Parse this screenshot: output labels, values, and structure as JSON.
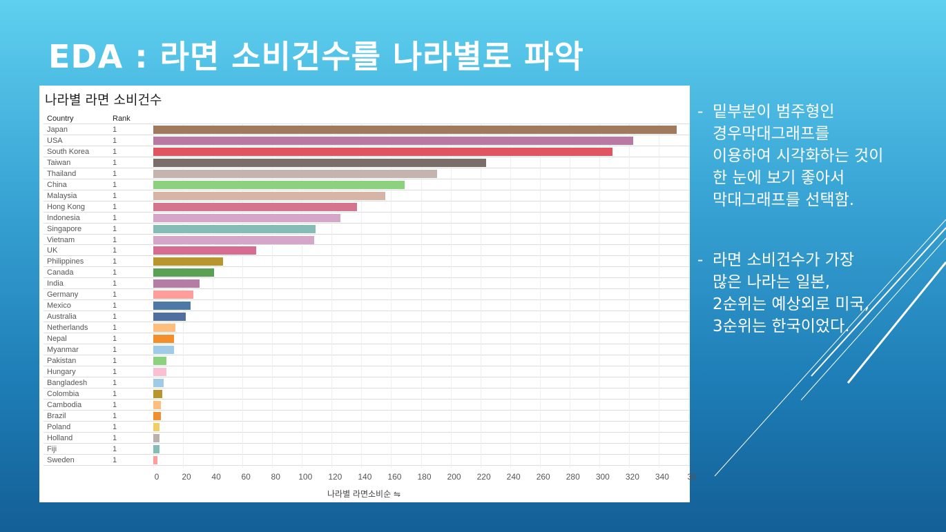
{
  "slide": {
    "title": "EDA : 라면 소비건수를 나라별로 파악"
  },
  "chart": {
    "title": "나라별 라면 소비건수",
    "headers": {
      "country": "Country",
      "rank": "Rank"
    },
    "axis_title": "나라별 라면소비순 ⇋",
    "tick_labels": [
      "0",
      "20",
      "40",
      "60",
      "80",
      "100",
      "120",
      "140",
      "160",
      "180",
      "200",
      "220",
      "240",
      "260",
      "280",
      "300",
      "320",
      "340",
      "36"
    ]
  },
  "chart_data": {
    "type": "bar",
    "orientation": "horizontal",
    "title": "나라별 라면 소비건수",
    "xlabel": "나라별 라면소비순",
    "xlim": [
      0,
      360
    ],
    "categories": [
      "Japan",
      "USA",
      "South Korea",
      "Taiwan",
      "Thailand",
      "China",
      "Malaysia",
      "Hong Kong",
      "Indonesia",
      "Singapore",
      "Vietnam",
      "UK",
      "Philippines",
      "Canada",
      "India",
      "Germany",
      "Mexico",
      "Australia",
      "Netherlands",
      "Nepal",
      "Myanmar",
      "Pakistan",
      "Hungary",
      "Bangladesh",
      "Colombia",
      "Cambodia",
      "Brazil",
      "Poland",
      "Holland",
      "Fiji",
      "Sweden"
    ],
    "ranks": [
      "1",
      "1",
      "1",
      "1",
      "1",
      "1",
      "1",
      "1",
      "1",
      "1",
      "1",
      "1",
      "1",
      "1",
      "1",
      "1",
      "1",
      "1",
      "1",
      "1",
      "1",
      "1",
      "1",
      "1",
      "1",
      "1",
      "1",
      "1",
      "1",
      "1",
      "1"
    ],
    "values": [
      352,
      323,
      309,
      224,
      191,
      169,
      156,
      137,
      126,
      109,
      108,
      69,
      47,
      41,
      31,
      27,
      25,
      22,
      15,
      14,
      14,
      9,
      9,
      7,
      6,
      5,
      5,
      4,
      4,
      4,
      3
    ],
    "colors": [
      "#a07a5e",
      "#b87aa3",
      "#e05561",
      "#7a6e6a",
      "#c4b4b0",
      "#8cd17d",
      "#d7b5a6",
      "#d6748f",
      "#d5a6c9",
      "#86bcb6",
      "#d4a6c8",
      "#d66c8f",
      "#b8952d",
      "#5aa156",
      "#b57da6",
      "#ff9d9a",
      "#4e79a7",
      "#4e6f9f",
      "#ffbe7d",
      "#f28e2b",
      "#a0cbe8",
      "#8cd17d",
      "#fabfd2",
      "#a0cbe8",
      "#b8952d",
      "#ffbe7d",
      "#f28e2b",
      "#f1ce63",
      "#bab0ac",
      "#86bcb6",
      "#ff9d9a"
    ]
  },
  "notes": [
    {
      "dash": "-",
      "lines": [
        "  밑부분이 범주형인",
        "  경우막대그래프를",
        "  이용하여 시각화하는 것이",
        "한 눈에 보기 좋아서",
        "막대그래프를 선택함."
      ]
    },
    {
      "dash": "-",
      "lines": [
        "  라면 소비건수가 가장",
        "많은 나라는 일본,",
        "2순위는 예상외로 미국,",
        "3순위는 한국이었다."
      ]
    }
  ]
}
